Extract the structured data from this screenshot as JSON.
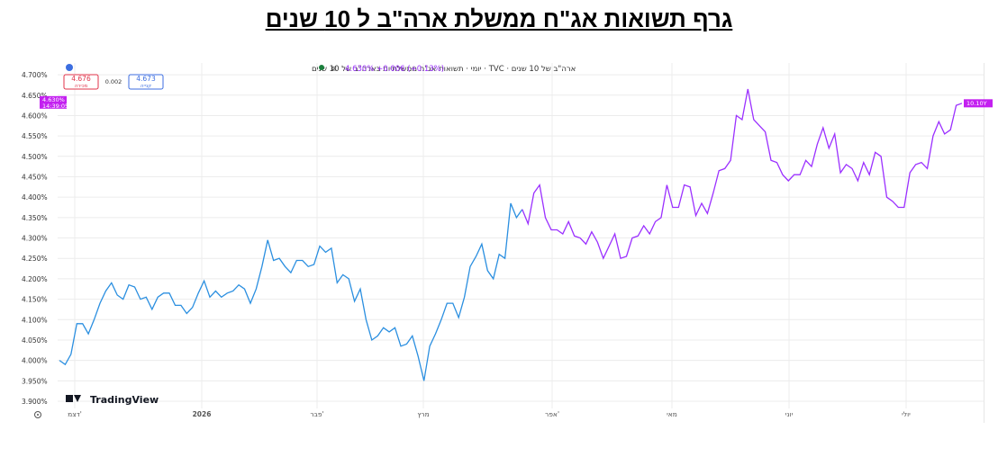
{
  "page": {
    "title": "גרף תשואות אג\"ח ממשלת ארה\"ב ל 10 שנים"
  },
  "header": {
    "symbol_text": "ארה\"ב של 10 שנים · TVC · יומי · תשואות אג\"ח ממשלתיות בארה\"ב של 10 שנים",
    "live_value": "4.630% +0.006 (+0.13%)",
    "sell_value": "4.676",
    "sell_label": "מכירה",
    "spread": "0.002",
    "buy_value": "4.673",
    "buy_label": "קנייה"
  },
  "price_tag": {
    "value": "4.630%",
    "time": "14:39:05",
    "end_label": "10.10Y"
  },
  "branding": {
    "logo_text": "TradingView"
  },
  "colors": {
    "line_first": "#2b8fe0",
    "line_second": "#9b30ff",
    "price_tag_bg": "#c320f0",
    "grid": "#ececec",
    "sell_border": "#e0334a",
    "buy_border": "#3c6ee0"
  },
  "chart_data": {
    "type": "line",
    "title": "",
    "xlabel": "",
    "ylabel": "",
    "ylim": [
      3.9,
      4.72
    ],
    "y_ticks": [
      "3.900%",
      "3.950%",
      "4.000%",
      "4.050%",
      "4.100%",
      "4.150%",
      "4.200%",
      "4.250%",
      "4.300%",
      "4.350%",
      "4.400%",
      "4.450%",
      "4.500%",
      "4.550%",
      "4.600%",
      "4.650%",
      "4.700%"
    ],
    "x_tick_labels": [
      "דצמ'",
      "2026",
      "פבר'",
      "מרץ",
      "אפר'",
      "מאי",
      "יוני",
      "יולי"
    ],
    "series": [
      {
        "values": [
          4.0,
          3.99,
          4.015,
          4.09,
          4.09,
          4.065,
          4.1,
          4.14,
          4.17,
          4.19,
          4.16,
          4.15,
          4.185,
          4.18,
          4.15,
          4.155,
          4.125,
          4.155,
          4.165,
          4.165,
          4.135,
          4.135,
          4.115,
          4.13,
          4.165,
          4.195,
          4.155,
          4.17,
          4.155,
          4.165,
          4.17,
          4.185,
          4.175,
          4.14,
          4.175,
          4.23,
          4.295,
          4.245,
          4.25,
          4.23,
          4.215,
          4.245,
          4.245,
          4.23,
          4.235,
          4.28,
          4.265,
          4.275,
          4.19,
          4.21,
          4.2,
          4.145,
          4.175,
          4.1,
          4.05,
          4.06,
          4.08,
          4.07,
          4.08,
          4.035,
          4.04,
          4.06,
          4.01,
          3.95,
          4.035,
          4.065,
          4.1,
          4.14,
          4.14,
          4.105,
          4.155,
          4.23,
          4.255,
          4.285,
          4.22,
          4.2,
          4.26,
          4.25,
          4.385,
          4.35,
          4.37,
          4.335,
          4.41,
          4.43,
          4.35,
          4.32,
          4.32,
          4.31,
          4.34,
          4.305,
          4.3,
          4.285,
          4.315,
          4.29,
          4.25,
          4.28,
          4.31,
          4.25,
          4.255,
          4.3,
          4.305,
          4.33,
          4.31,
          4.34,
          4.35,
          4.43,
          4.375,
          4.375,
          4.43,
          4.425,
          4.355,
          4.385,
          4.36,
          4.41,
          4.465,
          4.47,
          4.49,
          4.6,
          4.59,
          4.665,
          4.59,
          4.575,
          4.56,
          4.49,
          4.485,
          4.455,
          4.44,
          4.455,
          4.455,
          4.49,
          4.475,
          4.53,
          4.57,
          4.52,
          4.555,
          4.46,
          4.48,
          4.47,
          4.44,
          4.485,
          4.455,
          4.51,
          4.5,
          4.4,
          4.39,
          4.375,
          4.375,
          4.46,
          4.48,
          4.485,
          4.47,
          4.55,
          4.585,
          4.555,
          4.565,
          4.625,
          4.63
        ]
      }
    ]
  }
}
